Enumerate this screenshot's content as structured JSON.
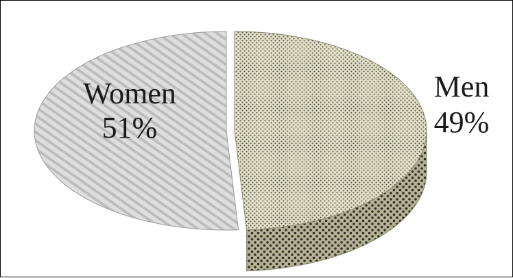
{
  "chart_data": {
    "type": "pie",
    "style": "3d-exploded",
    "slices": [
      {
        "label": "Women",
        "value": 51,
        "value_label": "51%",
        "pattern": "diagonal-stripes",
        "color": "#d2d2d2"
      },
      {
        "label": "Men",
        "value": 49,
        "value_label": "49%",
        "pattern": "dots",
        "color": "#dcd8c0"
      }
    ]
  }
}
